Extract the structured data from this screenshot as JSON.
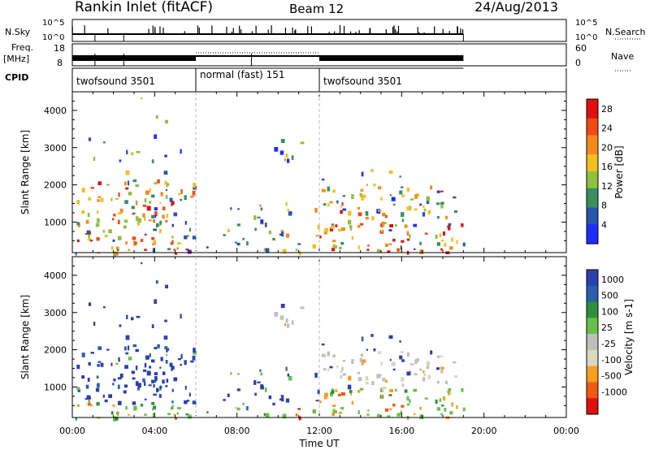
{
  "header": {
    "station": "Rankin Inlet (fitACF)",
    "beam": "Beam 12",
    "date": "24/Aug/2013"
  },
  "strips": {
    "nsky_label": "N.Sky",
    "nsky_ticks": [
      "10^5",
      "10^0"
    ],
    "nsearch_label": "N.Search",
    "nsearch_ticks": [
      "10^5",
      "10^0"
    ],
    "freq_label": "Freq.",
    "freq_unit": "[MHz]",
    "freq_ticks": [
      "18",
      "8"
    ],
    "nave_label": "Nave",
    "nave_ticks": [
      "60",
      "0"
    ],
    "cpid_label": "CPID",
    "cpid_segments": [
      {
        "label": "twofsound 3501",
        "start_h": 0,
        "end_h": 6
      },
      {
        "label": "normal (fast) 151",
        "start_h": 6,
        "end_h": 12
      },
      {
        "label": "twofsound 3501",
        "start_h": 12,
        "end_h": 19
      }
    ]
  },
  "colors": {
    "power": [
      "#1f2cff",
      "#2855b0",
      "#3b8f5e",
      "#8fc040",
      "#f0c020",
      "#f58a1a",
      "#f24a14",
      "#e01010"
    ],
    "velocity": [
      "#e01010",
      "#f05a14",
      "#f7a020",
      "#d9d9c0",
      "#bfbfbf",
      "#68c04a",
      "#2f8f3a",
      "#2a5fb0",
      "#2a3fb0"
    ]
  },
  "chart_data": [
    {
      "type": "heatmap",
      "title": "Power",
      "xlabel": "Time UT",
      "ylabel": "Slant Range [km]",
      "xlim_hours": [
        0,
        24
      ],
      "ylim_km": [
        180,
        4500
      ],
      "x_ticks": [
        "00:00",
        "04:00",
        "08:00",
        "12:00",
        "16:00",
        "20:00",
        "00:00"
      ],
      "y_ticks": [
        1000,
        2000,
        3000,
        4000
      ],
      "colorbar_label": "Power [dB]",
      "colorbar_ticks": [
        4,
        8,
        12,
        16,
        20,
        24,
        28
      ],
      "colorbar_range": [
        0,
        30
      ]
    },
    {
      "type": "heatmap",
      "title": "Velocity",
      "xlabel": "Time UT",
      "ylabel": "Slant Range [km]",
      "xlim_hours": [
        0,
        24
      ],
      "ylim_km": [
        180,
        4500
      ],
      "x_ticks": [
        "00:00",
        "04:00",
        "08:00",
        "12:00",
        "16:00",
        "20:00",
        "00:00"
      ],
      "y_ticks": [
        1000,
        2000,
        3000,
        4000
      ],
      "colorbar_label": "Velocity [m s-1]",
      "colorbar_ticks": [
        1000,
        500,
        100,
        25,
        -25,
        -100,
        -500,
        -1000
      ]
    }
  ],
  "xaxis_title": "Time UT"
}
